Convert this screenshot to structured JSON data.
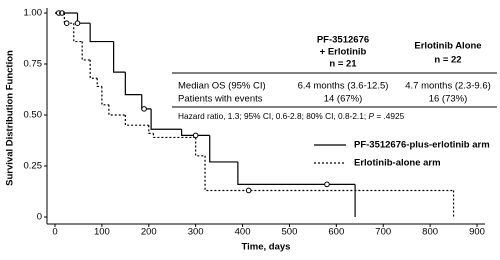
{
  "chart_data": {
    "type": "step",
    "y_label": "Survival Distribution Function",
    "x_label": "Time, days",
    "xlim": [
      0,
      900
    ],
    "xticks": [
      0,
      100,
      200,
      300,
      400,
      500,
      600,
      700,
      800,
      900
    ],
    "ylim": [
      0,
      1
    ],
    "yticks": [
      0,
      0.25,
      {
        "value": 0.5,
        "label": "0.50"
      },
      0.75,
      {
        "value": 1,
        "label": "1.00"
      }
    ],
    "series": [
      {
        "name": "PF-3512676-plus-erlotinib arm",
        "color": "#000000",
        "dash": false,
        "x": [
          0,
          48,
          75,
          125,
          150,
          185,
          205,
          270,
          330,
          390,
          640
        ],
        "values": [
          1,
          0.95,
          0.86,
          0.71,
          0.6,
          0.53,
          0.43,
          0.4,
          0.27,
          0.16,
          0
        ],
        "censored": {
          "x": [
            8,
            15,
            48,
            190,
            300,
            580
          ],
          "values": [
            1,
            1,
            0.95,
            0.53,
            0.4,
            0.16
          ]
        }
      },
      {
        "name": "Erlotinib-alone arm",
        "color": "#000000",
        "dash": true,
        "x": [
          0,
          20,
          40,
          58,
          75,
          90,
          100,
          115,
          150,
          200,
          210,
          300,
          320,
          850
        ],
        "values": [
          1,
          0.95,
          0.86,
          0.77,
          0.68,
          0.64,
          0.55,
          0.5,
          0.45,
          0.41,
          0.39,
          0.3,
          0.13,
          0
        ],
        "censored": {
          "x": [
            25,
            413
          ],
          "values": [
            0.95,
            0.13
          ]
        }
      }
    ],
    "table": {
      "headers": [
        [
          "PF-3512676",
          "+ Erlotinib",
          "n = 21"
        ],
        [
          "Erlotinib Alone",
          "n = 22"
        ]
      ],
      "rows": [
        [
          "Median OS (95% CI)",
          "6.4 months (3.6-12.5)",
          "4.7 months (2.3-9.6)"
        ],
        [
          "Patients with events",
          "14 (67%)",
          "16 (73%)"
        ]
      ],
      "footnote": [
        "Hazard ratio, 1.3; 95% CI, 0.6-2.8; 80% CI, 0.8-2.1; ",
        "P",
        " = .4925"
      ]
    }
  }
}
